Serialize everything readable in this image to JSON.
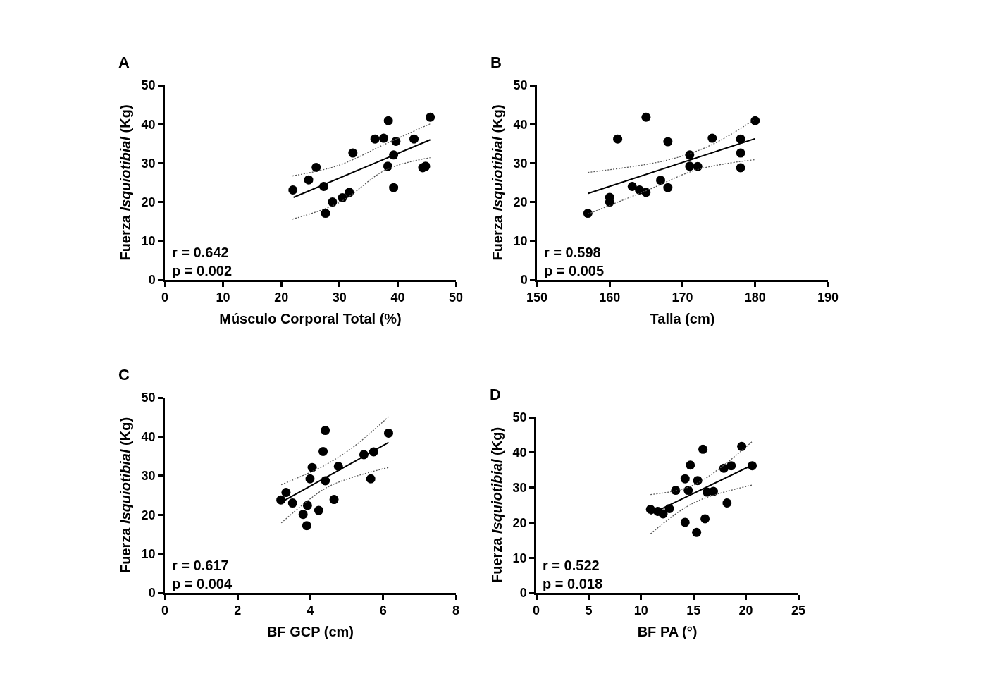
{
  "chart_data": [
    {
      "type": "scatter",
      "title": "A",
      "xlabel": "Músculo Corporal Total (%)",
      "ylabel": "Fuerza Isquiotibial (Kg)",
      "xlim": [
        0,
        50
      ],
      "xticks": [
        0,
        10,
        20,
        30,
        40,
        50
      ],
      "ylim": [
        0,
        50
      ],
      "yticks": [
        0,
        10,
        20,
        30,
        40,
        50
      ],
      "annotations": [
        "r = 0.642",
        "p = 0.002"
      ],
      "series": [
        {
          "color": "#000000",
          "marker": "circle",
          "x": [
            22.0,
            24.7,
            26.0,
            27.3,
            27.6,
            28.8,
            30.5,
            31.7,
            32.3,
            36.1,
            37.6,
            38.4,
            38.3,
            39.3,
            39.3,
            39.7,
            42.8,
            44.3,
            44.8,
            45.6
          ],
          "values": [
            23.1,
            25.7,
            28.9,
            24.0,
            17.1,
            20.0,
            21.1,
            22.5,
            32.6,
            36.2,
            36.4,
            40.9,
            29.2,
            32.1,
            23.7,
            35.6,
            36.2,
            28.8,
            29.2,
            41.8
          ]
        },
        {
          "type": "line",
          "color": "#000000",
          "marker": "none",
          "line_style": "solid",
          "x": [
            22.1,
            45.6
          ],
          "values": [
            21.2,
            36.0
          ]
        },
        {
          "type": "line",
          "color": "#555555",
          "marker": "none",
          "line_style": "dotted",
          "x": [
            21.9,
            30.0,
            38.0,
            45.6
          ],
          "values": [
            26.7,
            29.5,
            35.0,
            40.1
          ]
        },
        {
          "type": "line",
          "color": "#555555",
          "marker": "none",
          "line_style": "dotted",
          "x": [
            21.9,
            30.0,
            38.0,
            45.6
          ],
          "values": [
            15.6,
            19.9,
            28.3,
            31.4
          ]
        }
      ]
    },
    {
      "type": "scatter",
      "title": "B",
      "xlabel": "Talla (cm)",
      "ylabel": "Fuerza Isquiotibial (Kg)",
      "xlim": [
        150,
        190
      ],
      "xticks": [
        150,
        160,
        170,
        180,
        190
      ],
      "ylim": [
        0,
        50
      ],
      "yticks": [
        0,
        10,
        20,
        30,
        40,
        50
      ],
      "annotations": [
        "r = 0.598",
        "p = 0.005"
      ],
      "series": [
        {
          "color": "#000000",
          "marker": "circle",
          "x": [
            157.0,
            160.0,
            160.0,
            161.1,
            163.1,
            164.1,
            165.0,
            165.0,
            167.0,
            168.0,
            168.0,
            171.0,
            171.0,
            172.1,
            174.1,
            178.0,
            178.0,
            178.0,
            180.0
          ],
          "values": [
            17.1,
            21.2,
            20.0,
            36.2,
            24.0,
            23.1,
            22.5,
            41.8,
            25.6,
            23.7,
            35.5,
            32.1,
            29.2,
            29.1,
            36.4,
            36.2,
            32.6,
            28.8,
            40.9
          ]
        },
        {
          "type": "line",
          "color": "#000000",
          "marker": "none",
          "line_style": "solid",
          "x": [
            157.0,
            180.0
          ],
          "values": [
            22.2,
            36.3
          ]
        },
        {
          "type": "line",
          "color": "#555555",
          "marker": "none",
          "line_style": "dotted",
          "x": [
            157.0,
            168.0,
            174.0,
            180.0
          ],
          "values": [
            27.6,
            30.8,
            34.7,
            41.3
          ]
        },
        {
          "type": "line",
          "color": "#555555",
          "marker": "none",
          "line_style": "dotted",
          "x": [
            157.0,
            165.0,
            172.0,
            180.0
          ],
          "values": [
            16.9,
            22.9,
            28.3,
            30.9
          ]
        }
      ]
    },
    {
      "type": "scatter",
      "title": "C",
      "xlabel": "BF GCP (cm)",
      "ylabel": "Fuerza Isquiotibial (Kg)",
      "xlim": [
        0,
        8
      ],
      "xticks": [
        0,
        2,
        4,
        6,
        8
      ],
      "ylim": [
        0,
        50
      ],
      "yticks": [
        0,
        10,
        20,
        30,
        40,
        50
      ],
      "annotations": [
        "r = 0.617",
        "p = 0.004"
      ],
      "series": [
        {
          "color": "#000000",
          "marker": "circle",
          "x": [
            3.19,
            3.33,
            3.51,
            3.8,
            3.92,
            3.9,
            3.99,
            4.05,
            4.23,
            4.35,
            4.41,
            4.41,
            4.65,
            4.77,
            5.47,
            5.74,
            5.66,
            6.15
          ],
          "values": [
            23.8,
            25.7,
            23.0,
            20.1,
            22.4,
            17.2,
            29.2,
            32.1,
            21.1,
            36.2,
            41.6,
            28.7,
            23.9,
            32.4,
            35.4,
            36.1,
            29.2,
            40.9
          ]
        },
        {
          "type": "line",
          "color": "#000000",
          "marker": "none",
          "line_style": "solid",
          "x": [
            3.2,
            6.15
          ],
          "values": [
            23.2,
            38.5
          ]
        },
        {
          "type": "line",
          "color": "#555555",
          "marker": "none",
          "line_style": "dotted",
          "x": [
            3.2,
            4.4,
            5.2,
            6.15
          ],
          "values": [
            27.7,
            32.7,
            37.5,
            45.1
          ]
        },
        {
          "type": "line",
          "color": "#555555",
          "marker": "none",
          "line_style": "dotted",
          "x": [
            3.2,
            4.4,
            5.2,
            6.15
          ],
          "values": [
            17.9,
            26.7,
            29.7,
            32.1
          ]
        }
      ]
    },
    {
      "type": "scatter",
      "title": "D",
      "xlabel": "BF PA (°)",
      "ylabel": "Fuerza Isquiotibial (Kg)",
      "xlim": [
        0,
        25
      ],
      "xticks": [
        0,
        5,
        10,
        15,
        20,
        25
      ],
      "ylim": [
        0,
        50
      ],
      "yticks": [
        0,
        10,
        20,
        30,
        40,
        50
      ],
      "annotations": [
        "r = 0.522",
        "p = 0.018"
      ],
      "series": [
        {
          "color": "#000000",
          "marker": "circle",
          "x": [
            10.9,
            11.6,
            12.1,
            12.7,
            13.3,
            14.2,
            14.2,
            14.5,
            14.7,
            15.3,
            15.4,
            15.9,
            16.1,
            16.3,
            16.9,
            17.9,
            18.2,
            18.6,
            19.6,
            20.6
          ],
          "values": [
            23.8,
            23.2,
            22.5,
            24.0,
            29.2,
            32.5,
            20.1,
            29.2,
            36.4,
            17.2,
            32.0,
            40.9,
            21.1,
            28.7,
            28.9,
            35.5,
            25.6,
            36.2,
            41.7,
            36.2
          ]
        },
        {
          "type": "line",
          "color": "#000000",
          "marker": "none",
          "line_style": "solid",
          "x": [
            10.9,
            20.6
          ],
          "values": [
            22.4,
            36.4
          ]
        },
        {
          "type": "line",
          "color": "#555555",
          "marker": "none",
          "line_style": "dotted",
          "x": [
            10.9,
            15.0,
            20.6
          ],
          "values": [
            28.0,
            30.7,
            43.1
          ]
        },
        {
          "type": "line",
          "color": "#555555",
          "marker": "none",
          "line_style": "dotted",
          "x": [
            10.9,
            15.0,
            20.6
          ],
          "values": [
            16.8,
            25.6,
            30.7
          ]
        }
      ]
    }
  ]
}
